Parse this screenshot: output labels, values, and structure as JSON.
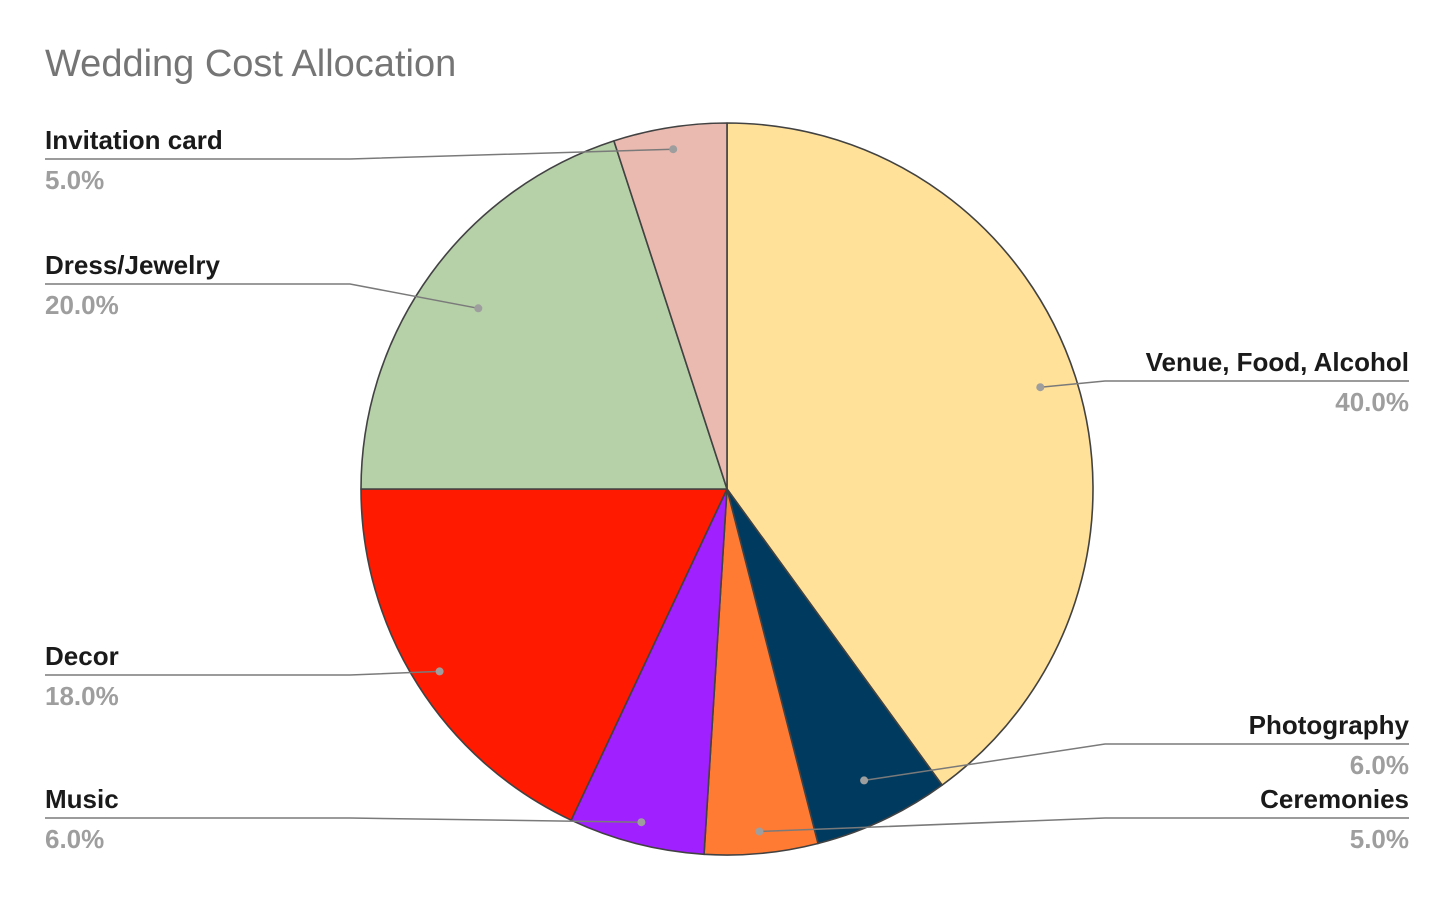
{
  "chart_data": {
    "type": "pie",
    "title": "Wedding Cost Allocation",
    "start_angle_deg": 0,
    "direction": "clockwise",
    "slice_border_color": "#424242",
    "leader_line_color": "#7a7a7a",
    "leader_dot_color": "#9e9e9e",
    "legend": "none",
    "slices": [
      {
        "label": "Venue, Food, Alcohol",
        "value": 40.0,
        "display": "40.0%",
        "color": "#FFE199"
      },
      {
        "label": "Photography",
        "value": 6.0,
        "display": "6.0%",
        "color": "#003B5F"
      },
      {
        "label": "Ceremonies",
        "value": 5.0,
        "display": "5.0%",
        "color": "#FF7A33"
      },
      {
        "label": "Music",
        "value": 6.0,
        "display": "6.0%",
        "color": "#A020FF"
      },
      {
        "label": "Decor",
        "value": 18.0,
        "display": "18.0%",
        "color": "#FF1A00"
      },
      {
        "label": "Dress/Jewelry",
        "value": 20.0,
        "display": "20.0%",
        "color": "#B6D0A8"
      },
      {
        "label": "Invitation card",
        "value": 5.0,
        "display": "5.0%",
        "color": "#EABAB0"
      }
    ]
  }
}
